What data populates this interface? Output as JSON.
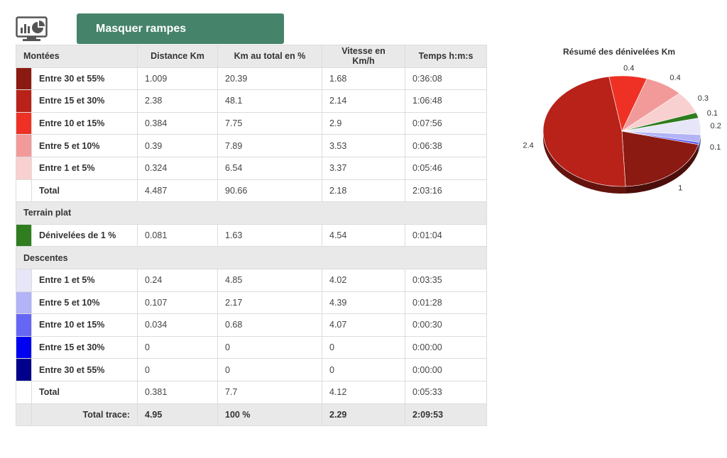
{
  "toolbar": {
    "toggle_label": "Masquer rampes",
    "icon": "chart-monitor-icon"
  },
  "table": {
    "headers": [
      "Montées",
      "Distance Km",
      "Km au total en %",
      "Vitesse en Km/h",
      "Temps h:m:s"
    ],
    "climbs": {
      "rows": [
        {
          "label": "Entre 30 et 55%",
          "color": "#8b1a12",
          "distance": "1.009",
          "pct": "20.39",
          "speed": "1.68",
          "time": "0:36:08"
        },
        {
          "label": "Entre 15 et 30%",
          "color": "#b82219",
          "distance": "2.38",
          "pct": "48.1",
          "speed": "2.14",
          "time": "1:06:48"
        },
        {
          "label": "Entre 10 et 15%",
          "color": "#ee3124",
          "distance": "0.384",
          "pct": "7.75",
          "speed": "2.9",
          "time": "0:07:56"
        },
        {
          "label": "Entre 5 et 10%",
          "color": "#f29a9a",
          "distance": "0.39",
          "pct": "7.89",
          "speed": "3.53",
          "time": "0:06:38"
        },
        {
          "label": "Entre 1 et 5%",
          "color": "#f9d0d0",
          "distance": "0.324",
          "pct": "6.54",
          "speed": "3.37",
          "time": "0:05:46"
        }
      ],
      "total": {
        "label": "Total",
        "distance": "4.487",
        "pct": "90.66",
        "speed": "2.18",
        "time": "2:03:16"
      }
    },
    "flat": {
      "title": "Terrain plat",
      "rows": [
        {
          "label": "Dénivelées de 1 %",
          "color": "#2f7d1f",
          "distance": "0.081",
          "pct": "1.63",
          "speed": "4.54",
          "time": "0:01:04"
        }
      ]
    },
    "descents": {
      "title": "Descentes",
      "rows": [
        {
          "label": "Entre 1 et 5%",
          "color": "#e6e6f8",
          "distance": "0.24",
          "pct": "4.85",
          "speed": "4.02",
          "time": "0:03:35"
        },
        {
          "label": "Entre 5 et 10%",
          "color": "#b3b3f7",
          "distance": "0.107",
          "pct": "2.17",
          "speed": "4.39",
          "time": "0:01:28"
        },
        {
          "label": "Entre 10 et 15%",
          "color": "#6666f5",
          "distance": "0.034",
          "pct": "0.68",
          "speed": "4.07",
          "time": "0:00:30"
        },
        {
          "label": "Entre 15 et 30%",
          "color": "#0000f0",
          "distance": "0",
          "pct": "0",
          "speed": "0",
          "time": "0:00:00"
        },
        {
          "label": "Entre 30 et 55%",
          "color": "#00008b",
          "distance": "0",
          "pct": "0",
          "speed": "0",
          "time": "0:00:00"
        }
      ],
      "total": {
        "label": "Total",
        "distance": "0.381",
        "pct": "7.7",
        "speed": "4.12",
        "time": "0:05:33"
      }
    },
    "grand_total": {
      "label": "Total trace:",
      "distance": "4.95",
      "pct": "100 %",
      "speed": "2.29",
      "time": "2:09:53"
    }
  },
  "chart_data": {
    "type": "pie",
    "title": "Résumé des dénivelées Km",
    "slices": [
      {
        "label": "1",
        "value": 1.009,
        "color": "#8b1a12"
      },
      {
        "label": "2.4",
        "value": 2.38,
        "color": "#b82219"
      },
      {
        "label": "0.4",
        "value": 0.384,
        "color": "#ee3124"
      },
      {
        "label": "0.4",
        "value": 0.39,
        "color": "#f29a9a"
      },
      {
        "label": "0.3",
        "value": 0.324,
        "color": "#f9d0d0"
      },
      {
        "label": "0.1",
        "value": 0.081,
        "color": "#2f7d1f"
      },
      {
        "label": "0.2",
        "value": 0.24,
        "color": "#e6e6f8"
      },
      {
        "label": "0.1",
        "value": 0.107,
        "color": "#b3b3f7"
      },
      {
        "label": "",
        "value": 0.034,
        "color": "#6666f5"
      },
      {
        "label": "",
        "value": 0,
        "color": "#0000f0"
      },
      {
        "label": "",
        "value": 0,
        "color": "#00008b"
      }
    ]
  }
}
